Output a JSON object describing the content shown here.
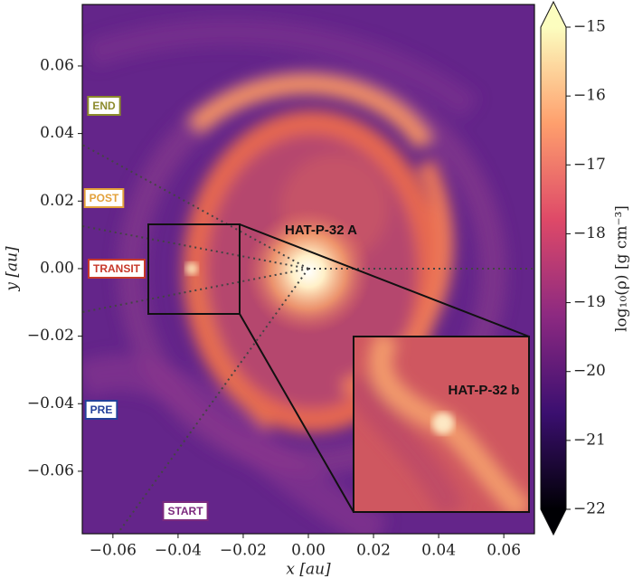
{
  "chart_data": {
    "type": "image",
    "xlabel": "x [au]",
    "ylabel": "y [au]",
    "xlim": [
      -0.0694,
      0.0694
    ],
    "ylim": [
      -0.0785,
      0.0782
    ],
    "xticks": [
      {
        "value": -0.06,
        "label": "−0.06"
      },
      {
        "value": -0.04,
        "label": "−0.04"
      },
      {
        "value": -0.02,
        "label": "−0.02"
      },
      {
        "value": 0,
        "label": "0.00"
      },
      {
        "value": 0.02,
        "label": "0.02"
      },
      {
        "value": 0.04,
        "label": "0.04"
      },
      {
        "value": 0.06,
        "label": "0.06"
      }
    ],
    "yticks": [
      {
        "value": -0.06,
        "label": "−0.06"
      },
      {
        "value": -0.04,
        "label": "−0.04"
      },
      {
        "value": -0.02,
        "label": "−0.02"
      },
      {
        "value": 0,
        "label": "0.00"
      },
      {
        "value": 0.02,
        "label": "0.02"
      },
      {
        "value": 0.04,
        "label": "0.04"
      },
      {
        "value": 0.06,
        "label": "0.06"
      }
    ],
    "colorbar": {
      "label": "log₁₀(ρ)  [g cm⁻³]",
      "lim": [
        -22,
        -15
      ],
      "ticks": [
        {
          "value": -22,
          "label": "−22"
        },
        {
          "value": -21,
          "label": "−21"
        },
        {
          "value": -20,
          "label": "−20"
        },
        {
          "value": -19,
          "label": "−19"
        },
        {
          "value": -18,
          "label": "−18"
        },
        {
          "value": -17,
          "label": "−17"
        },
        {
          "value": -16,
          "label": "−16"
        },
        {
          "value": -15,
          "label": "−15"
        }
      ],
      "colormap": [
        "#000004",
        "#3b0f70",
        "#8c2981",
        "#de4968",
        "#fe9f6d",
        "#fcfdbf"
      ]
    },
    "phase_labels": [
      {
        "text": "END",
        "color": "#8c8a2c"
      },
      {
        "text": "POST",
        "color": "#e3a13a"
      },
      {
        "text": "TRANSIT",
        "color": "#c7392b"
      },
      {
        "text": "PRE",
        "color": "#23409a"
      },
      {
        "text": "START",
        "color": "#7c2a7e"
      }
    ],
    "star_label": "HAT-P-32 A",
    "planet_label": "HAT-P-32 b"
  }
}
